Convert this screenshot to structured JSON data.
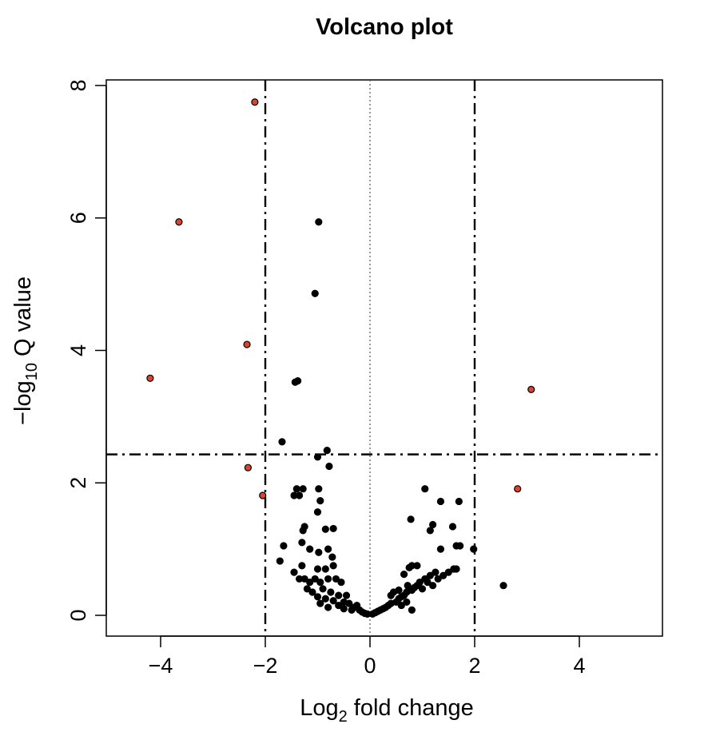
{
  "chart_data": {
    "type": "scatter",
    "title": "Volcano plot",
    "xlabel": {
      "prefix": "Log",
      "sub": "2",
      "suffix": " fold change"
    },
    "ylabel": {
      "prefix": "−log",
      "sub": "10",
      "suffix": " Q value"
    },
    "xlim": [
      -5,
      5.5
    ],
    "ylim": [
      0,
      8
    ],
    "x_ticks": [
      -4,
      -2,
      0,
      2,
      4
    ],
    "x_tick_labels": [
      "−4",
      "−2",
      "0",
      "2",
      "4"
    ],
    "y_ticks": [
      0,
      2,
      4,
      6,
      8
    ],
    "y_tick_labels": [
      "0",
      "2",
      "4",
      "6",
      "8"
    ],
    "grid": false,
    "reference_lines": {
      "vertical_dashdot": [
        -2,
        2
      ],
      "vertical_dotted": [
        0
      ],
      "horizontal_dashdot": [
        2.43
      ]
    },
    "colors": {
      "significant": "#d94430",
      "not_significant": "#000000",
      "outline": "#000000"
    },
    "series": [
      {
        "color": "#d94430",
        "points": [
          [
            -2.2,
            7.75
          ],
          [
            -3.65,
            5.94
          ],
          [
            -2.35,
            4.09
          ],
          [
            -4.2,
            3.58
          ],
          [
            -2.33,
            2.23
          ],
          [
            -2.05,
            1.81
          ],
          [
            3.08,
            3.41
          ],
          [
            2.82,
            1.91
          ]
        ]
      },
      {
        "color": "#000000",
        "points": [
          [
            -0.98,
            5.94
          ],
          [
            -1.05,
            4.86
          ],
          [
            -1.38,
            3.54
          ],
          [
            -1.43,
            3.52
          ],
          [
            -1.68,
            2.62
          ],
          [
            -0.82,
            2.49
          ],
          [
            -1.0,
            2.39
          ],
          [
            -0.78,
            2.25
          ],
          [
            -1.4,
            1.91
          ],
          [
            -1.28,
            1.91
          ],
          [
            -0.98,
            1.91
          ],
          [
            -1.45,
            1.81
          ],
          [
            -1.35,
            1.81
          ],
          [
            -0.95,
            1.73
          ],
          [
            -1.0,
            1.56
          ],
          [
            -1.25,
            1.34
          ],
          [
            -1.28,
            1.28
          ],
          [
            -0.85,
            1.3
          ],
          [
            -0.7,
            1.31
          ],
          [
            -1.3,
            1.1
          ],
          [
            -1.15,
            1.0
          ],
          [
            -0.98,
            0.95
          ],
          [
            -0.8,
            1.0
          ],
          [
            -1.65,
            1.05
          ],
          [
            -1.72,
            0.82
          ],
          [
            -0.72,
            0.88
          ],
          [
            -0.7,
            0.75
          ],
          [
            -1.3,
            0.75
          ],
          [
            -1.0,
            0.7
          ],
          [
            -0.85,
            0.7
          ],
          [
            -1.45,
            0.65
          ],
          [
            -1.35,
            0.55
          ],
          [
            -1.25,
            0.55
          ],
          [
            -1.15,
            0.5
          ],
          [
            -1.05,
            0.55
          ],
          [
            -0.95,
            0.5
          ],
          [
            -0.8,
            0.55
          ],
          [
            -0.65,
            0.55
          ],
          [
            -0.55,
            0.5
          ],
          [
            -1.2,
            0.4
          ],
          [
            -1.1,
            0.35
          ],
          [
            -0.9,
            0.4
          ],
          [
            -0.75,
            0.35
          ],
          [
            -0.6,
            0.3
          ],
          [
            -1.0,
            0.28
          ],
          [
            -0.85,
            0.25
          ],
          [
            -0.7,
            0.22
          ],
          [
            -0.5,
            0.2
          ],
          [
            -0.45,
            0.3
          ],
          [
            -0.4,
            0.18
          ],
          [
            -0.6,
            0.15
          ],
          [
            -0.3,
            0.12
          ],
          [
            -0.25,
            0.15
          ],
          [
            -0.35,
            0.08
          ],
          [
            -0.2,
            0.08
          ],
          [
            -0.15,
            0.05
          ],
          [
            -0.1,
            0.03
          ],
          [
            -0.05,
            0.02
          ],
          [
            -0.5,
            0.1
          ],
          [
            -0.8,
            0.12
          ],
          [
            -0.95,
            0.18
          ],
          [
            0.05,
            0.02
          ],
          [
            0.1,
            0.04
          ],
          [
            0.15,
            0.06
          ],
          [
            0.2,
            0.08
          ],
          [
            0.25,
            0.1
          ],
          [
            0.3,
            0.12
          ],
          [
            0.35,
            0.15
          ],
          [
            0.4,
            0.18
          ],
          [
            0.5,
            0.2
          ],
          [
            0.55,
            0.25
          ],
          [
            0.6,
            0.28
          ],
          [
            0.65,
            0.3
          ],
          [
            0.7,
            0.35
          ],
          [
            0.75,
            0.4
          ],
          [
            0.8,
            0.38
          ],
          [
            0.85,
            0.42
          ],
          [
            0.9,
            0.45
          ],
          [
            0.95,
            0.5
          ],
          [
            1.0,
            0.4
          ],
          [
            1.05,
            0.55
          ],
          [
            1.1,
            0.5
          ],
          [
            1.15,
            0.6
          ],
          [
            1.2,
            0.45
          ],
          [
            1.25,
            0.65
          ],
          [
            1.3,
            0.55
          ],
          [
            1.4,
            0.6
          ],
          [
            1.5,
            0.65
          ],
          [
            1.6,
            0.7
          ],
          [
            1.65,
            0.7
          ],
          [
            0.4,
            0.3
          ],
          [
            0.45,
            0.35
          ],
          [
            0.55,
            0.38
          ],
          [
            0.6,
            0.15
          ],
          [
            0.7,
            0.2
          ],
          [
            0.8,
            0.08
          ],
          [
            0.65,
            0.62
          ],
          [
            0.75,
            0.72
          ],
          [
            0.8,
            0.75
          ],
          [
            0.9,
            0.75
          ],
          [
            0.72,
            0.45
          ],
          [
            0.78,
            1.45
          ],
          [
            1.05,
            1.91
          ],
          [
            1.15,
            1.28
          ],
          [
            1.2,
            1.37
          ],
          [
            1.35,
            1.72
          ],
          [
            1.58,
            1.34
          ],
          [
            1.65,
            1.05
          ],
          [
            1.72,
            1.05
          ],
          [
            1.35,
            1.0
          ],
          [
            1.7,
            1.72
          ],
          [
            1.98,
            1.0
          ],
          [
            2.55,
            0.45
          ]
        ]
      }
    ]
  }
}
